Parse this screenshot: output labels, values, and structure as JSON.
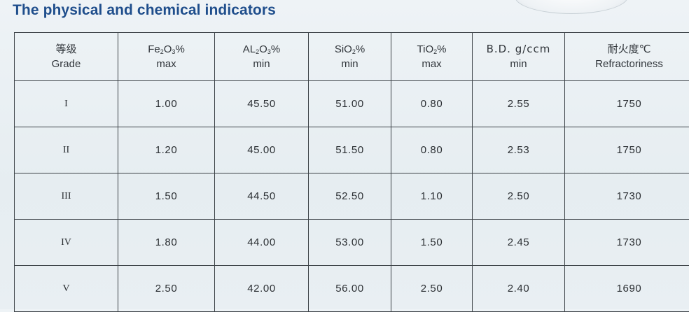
{
  "title": "The physical and chemical indicators",
  "table": {
    "headers": [
      {
        "line1": "等级",
        "line2": "Grade"
      },
      {
        "pre": "Fe",
        "sub1": "2",
        "mid": "O",
        "sub2": "3",
        "post": "%",
        "line2": "max"
      },
      {
        "pre": "AL",
        "sub1": "2",
        "mid": "O",
        "sub2": "3",
        "post": "%",
        "line2": "min"
      },
      {
        "pre": "SiO",
        "sub1": "2",
        "post": "%",
        "line2": "min"
      },
      {
        "pre": "TiO",
        "sub1": "2",
        "post": "%",
        "line2": "max"
      },
      {
        "line1": "B.D. g/ccm",
        "line2": "min"
      },
      {
        "line1": "耐火度℃",
        "line2": "Refractoriness"
      }
    ],
    "rows": [
      {
        "grade": "I",
        "fe2o3": "1.00",
        "al2o3": "45.50",
        "sio2": "51.00",
        "tio2": "0.80",
        "bd": "2.55",
        "refr": "1750"
      },
      {
        "grade": "II",
        "fe2o3": "1.20",
        "al2o3": "45.00",
        "sio2": "51.50",
        "tio2": "0.80",
        "bd": "2.53",
        "refr": "1750"
      },
      {
        "grade": "III",
        "fe2o3": "1.50",
        "al2o3": "44.50",
        "sio2": "52.50",
        "tio2": "1.10",
        "bd": "2.50",
        "refr": "1730"
      },
      {
        "grade": "IV",
        "fe2o3": "1.80",
        "al2o3": "44.00",
        "sio2": "53.00",
        "tio2": "1.50",
        "bd": "2.45",
        "refr": "1730"
      },
      {
        "grade": "V",
        "fe2o3": "2.50",
        "al2o3": "42.00",
        "sio2": "56.00",
        "tio2": "2.50",
        "bd": "2.40",
        "refr": "1690"
      }
    ]
  }
}
